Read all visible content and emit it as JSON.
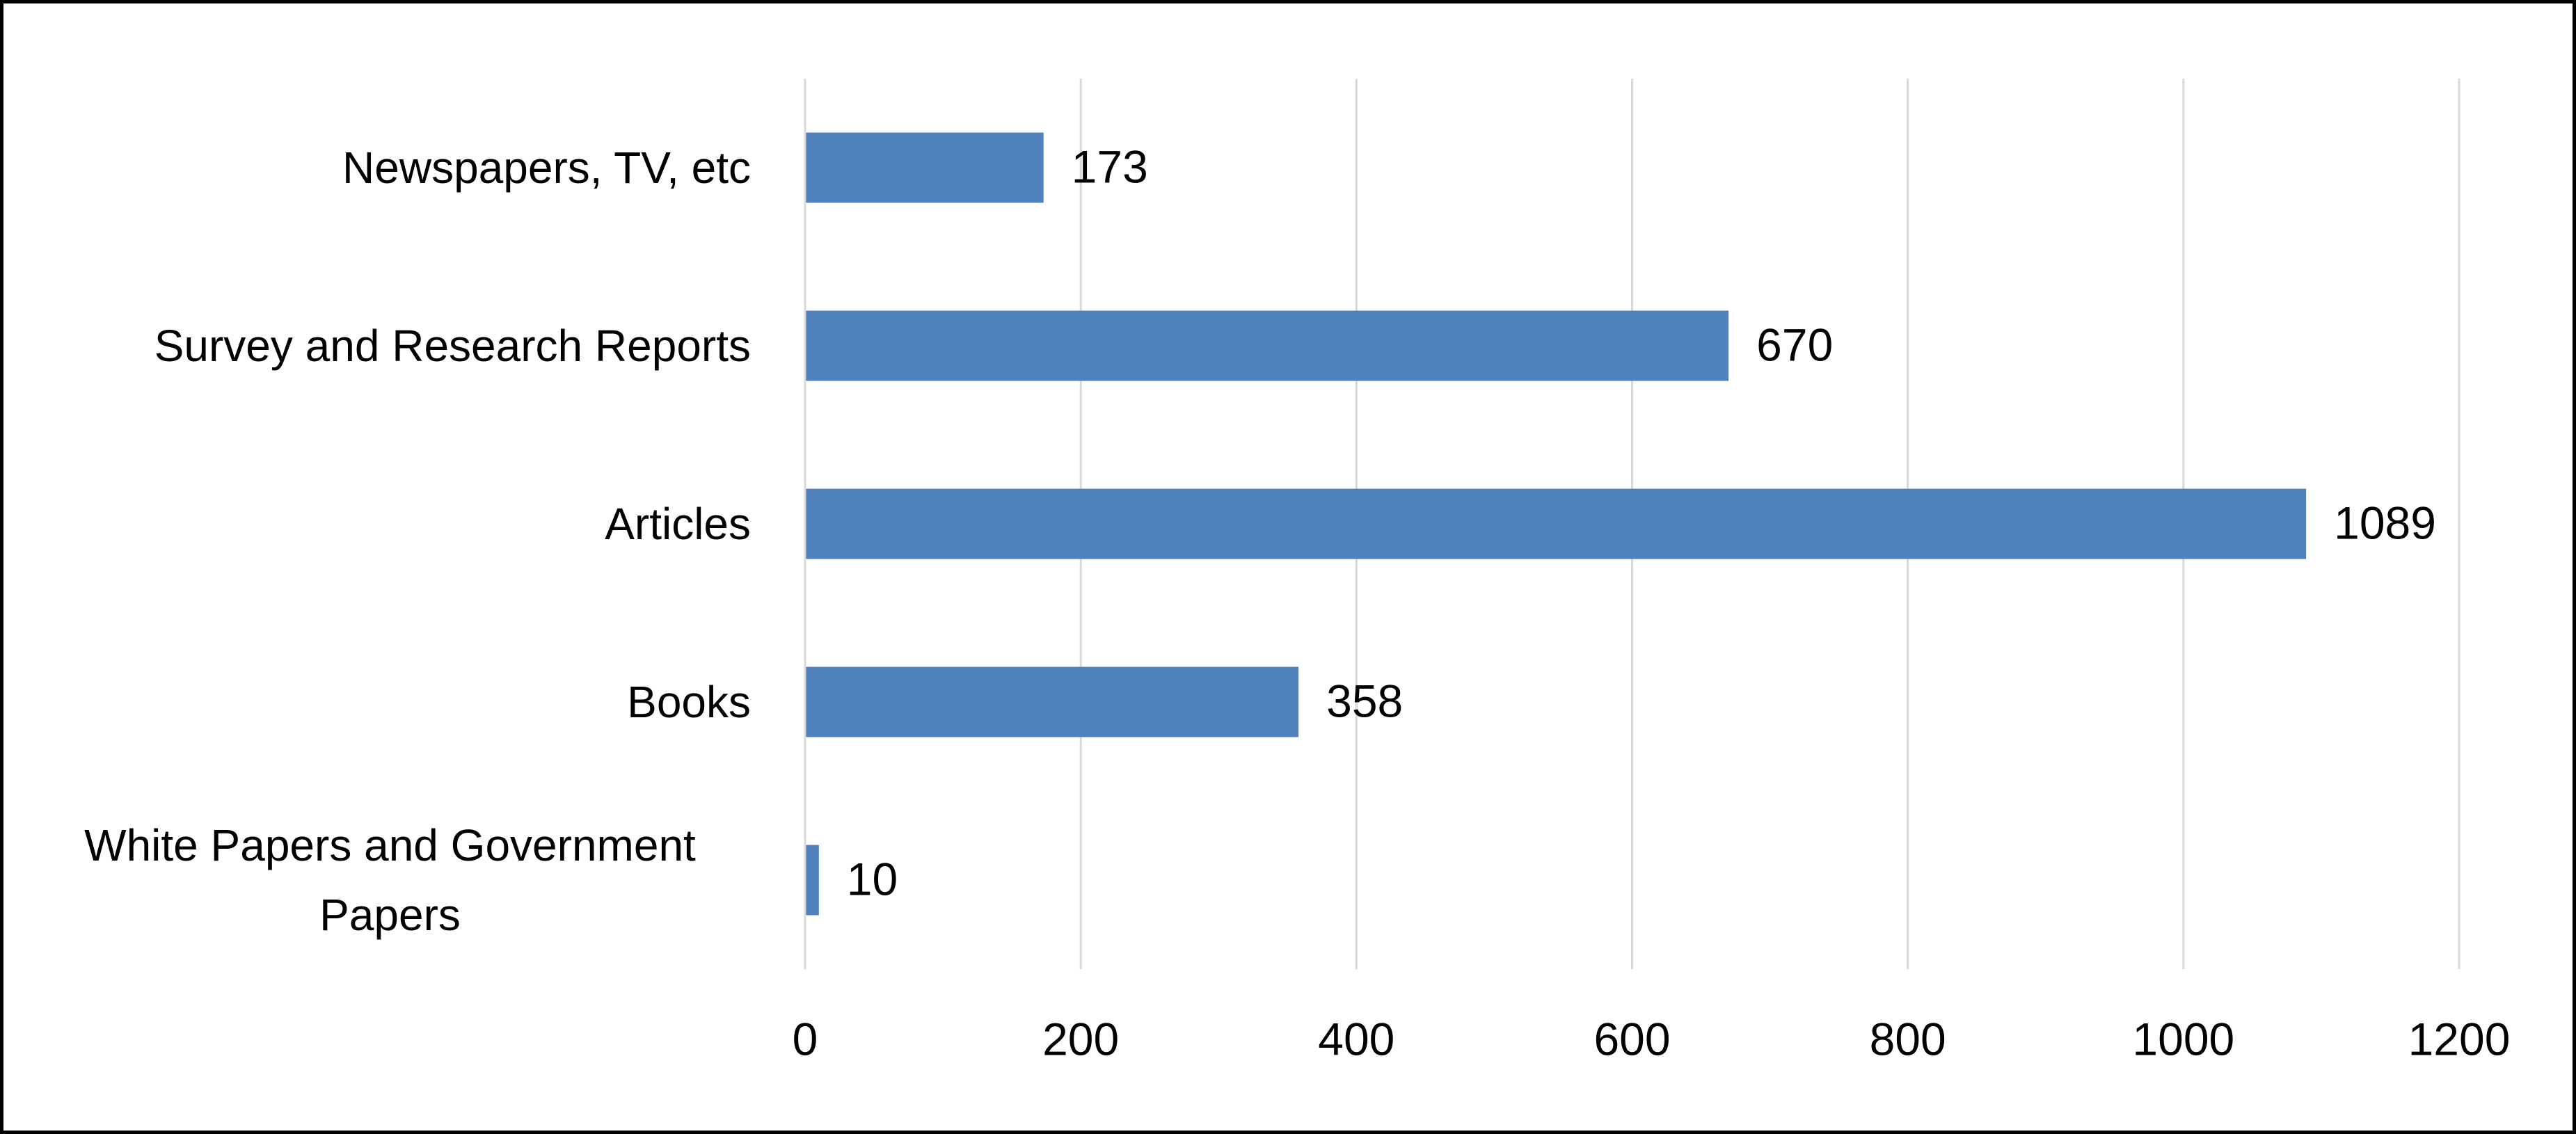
{
  "chart_data": {
    "type": "bar",
    "orientation": "horizontal",
    "categories": [
      "Newspapers, TV, etc",
      "Survey and Research Reports",
      "Articles",
      "Books",
      "White Papers and Government Papers"
    ],
    "values": [
      173,
      670,
      1089,
      358,
      10
    ],
    "color": "#4f81bd",
    "xlim": [
      0,
      1200
    ],
    "xticks": [
      0,
      200,
      400,
      600,
      800,
      1000,
      1200
    ],
    "grid": true
  }
}
